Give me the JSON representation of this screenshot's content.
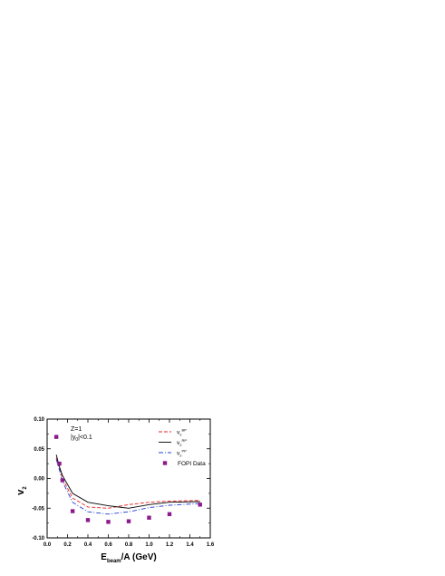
{
  "chart_data": {
    "type": "line",
    "ylabel": "v",
    "ylabel_sub": "2",
    "xlabel_main": "E",
    "xlabel_sub": "beam",
    "xlabel_rest": "/A  (GeV)",
    "xlim": [
      0.0,
      1.6
    ],
    "ylim": [
      -0.1,
      0.1
    ],
    "x_ticks": [
      "0.0",
      "0.2",
      "0.4",
      "0.6",
      "0.8",
      "1.0",
      "1.2",
      "1.4",
      "1.6"
    ],
    "y_ticks": [
      "0.10",
      "0.05",
      "0.00",
      "-0.05",
      "-0.10"
    ],
    "grid": false,
    "legend_position": "top-right",
    "annotations": {
      "line1": "Z=1",
      "line2_a": "|y",
      "line2_sub": "0",
      "line2_b": "|<0.1"
    },
    "series": [
      {
        "name": "v",
        "name_sub": "2",
        "name_sup": "BP",
        "style": "dash",
        "color": "#e8231f",
        "x": [
          0.09,
          0.12,
          0.15,
          0.25,
          0.4,
          0.6,
          0.8,
          1.0,
          1.2,
          1.5
        ],
        "y": [
          0.035,
          0.018,
          0.0,
          -0.033,
          -0.048,
          -0.05,
          -0.044,
          -0.04,
          -0.038,
          -0.037
        ]
      },
      {
        "name": "v",
        "name_sub": "2",
        "name_sup": "RP",
        "style": "solid",
        "color": "#000000",
        "x": [
          0.09,
          0.12,
          0.15,
          0.25,
          0.4,
          0.6,
          0.8,
          1.0,
          1.2,
          1.5
        ],
        "y": [
          0.04,
          0.02,
          0.005,
          -0.025,
          -0.04,
          -0.046,
          -0.05,
          -0.044,
          -0.04,
          -0.039
        ]
      },
      {
        "name": "v",
        "name_sub": "2",
        "name_sup": "PP",
        "style": "dashdot",
        "color": "#1f3fd4",
        "x": [
          0.09,
          0.12,
          0.15,
          0.25,
          0.4,
          0.6,
          0.8,
          1.0,
          1.2,
          1.5
        ],
        "y": [
          0.032,
          0.015,
          -0.005,
          -0.04,
          -0.056,
          -0.06,
          -0.056,
          -0.049,
          -0.045,
          -0.042
        ]
      },
      {
        "name": "FOPI Data",
        "style": "marker",
        "color": "#8b1a8b",
        "x": [
          0.09,
          0.12,
          0.15,
          0.25,
          0.4,
          0.6,
          0.8,
          1.0,
          1.2,
          1.5
        ],
        "y": [
          0.07,
          0.025,
          -0.003,
          -0.055,
          -0.07,
          -0.073,
          -0.072,
          -0.066,
          -0.06,
          -0.044
        ]
      }
    ]
  }
}
